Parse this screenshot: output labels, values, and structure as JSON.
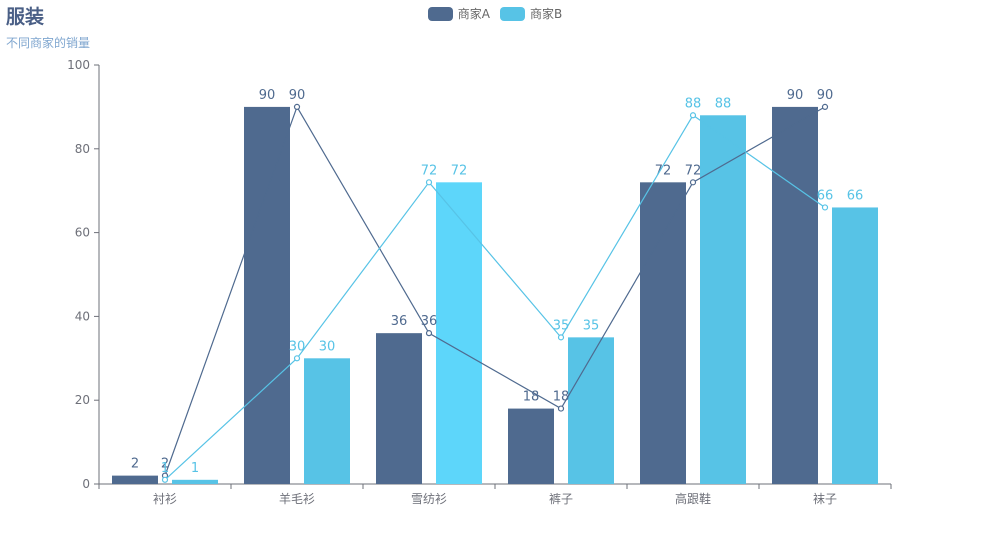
{
  "title": "服装",
  "subtitle": "不同商家的销量",
  "chart_data": {
    "type": "bar",
    "categories": [
      "衬衫",
      "羊毛衫",
      "雪纺衫",
      "裤子",
      "高跟鞋",
      "袜子"
    ],
    "series": [
      {
        "name": "商家A",
        "type": "bar+line",
        "values": [
          2,
          90,
          36,
          18,
          72,
          90
        ],
        "color": "#4f6a8f"
      },
      {
        "name": "商家B",
        "type": "bar+line",
        "values": [
          1,
          30,
          72,
          35,
          88,
          66
        ],
        "color": "#57c3e6"
      }
    ],
    "ylim": [
      0,
      100
    ],
    "yticks": [
      0,
      20,
      40,
      60,
      80,
      100
    ],
    "legend_position": "top-center"
  }
}
